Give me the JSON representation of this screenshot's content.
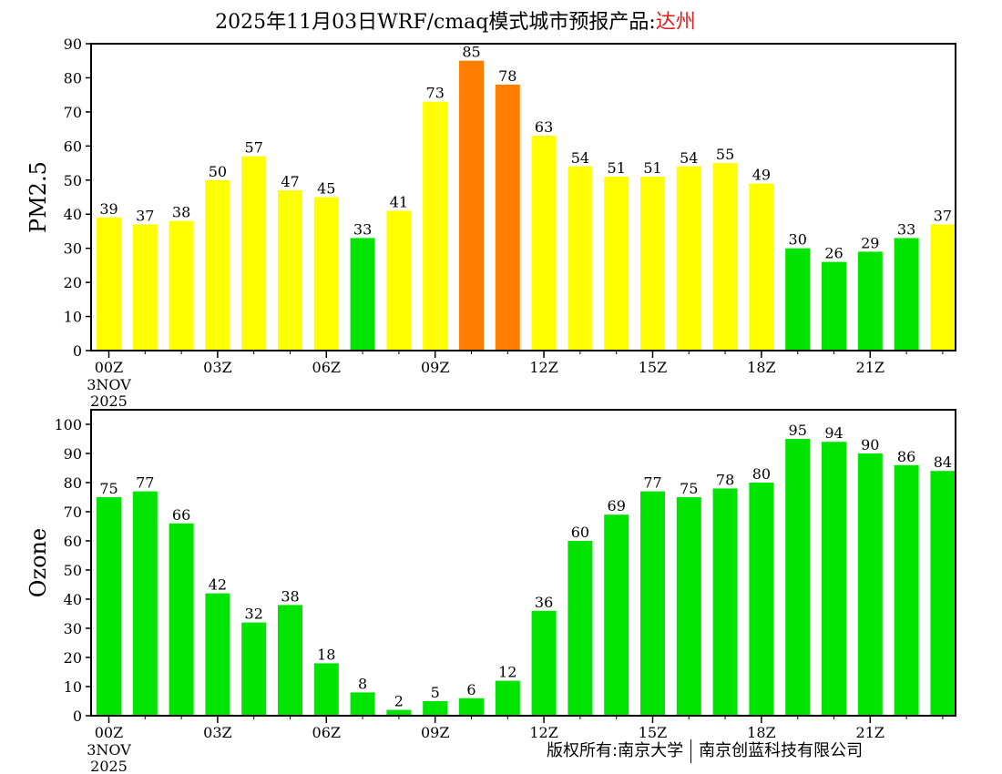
{
  "header": {
    "title_prefix": "2025年11月03日WRF/cmaq模式城市预报产品:",
    "city": "达州"
  },
  "footer": {
    "copyright_left": "版权所有:南京大学",
    "copyright_right": "南京创蓝科技有限公司"
  },
  "colors": {
    "green": "#00e400",
    "yellow": "#ffff00",
    "orange": "#ff7e00"
  },
  "chart_data": [
    {
      "type": "bar",
      "name": "pm25",
      "ylabel": "PM2.5",
      "ylim": [
        0,
        90
      ],
      "yticks": [
        0,
        10,
        20,
        30,
        40,
        50,
        60,
        70,
        80,
        90
      ],
      "values": [
        39,
        37,
        38,
        50,
        57,
        47,
        45,
        33,
        41,
        73,
        85,
        78,
        63,
        54,
        51,
        51,
        54,
        55,
        49,
        30,
        26,
        29,
        33,
        37
      ],
      "bar_colors": [
        "yellow",
        "yellow",
        "yellow",
        "yellow",
        "yellow",
        "yellow",
        "yellow",
        "green",
        "yellow",
        "yellow",
        "orange",
        "orange",
        "yellow",
        "yellow",
        "yellow",
        "yellow",
        "yellow",
        "yellow",
        "yellow",
        "green",
        "green",
        "green",
        "green",
        "yellow"
      ],
      "xtick_labels": [
        {
          "hour": 0,
          "label": "00Z"
        },
        {
          "hour": 3,
          "label": "03Z"
        },
        {
          "hour": 6,
          "label": "06Z"
        },
        {
          "hour": 9,
          "label": "09Z"
        },
        {
          "hour": 12,
          "label": "12Z"
        },
        {
          "hour": 15,
          "label": "15Z"
        },
        {
          "hour": 18,
          "label": "18Z"
        },
        {
          "hour": 21,
          "label": "21Z"
        }
      ],
      "date_label": [
        "3NOV",
        "2025"
      ]
    },
    {
      "type": "bar",
      "name": "ozone",
      "ylabel": "Ozone",
      "ylim": [
        0,
        105
      ],
      "yticks": [
        0,
        10,
        20,
        30,
        40,
        50,
        60,
        70,
        80,
        90,
        100
      ],
      "values": [
        75,
        77,
        66,
        42,
        32,
        38,
        18,
        8,
        2,
        5,
        6,
        12,
        36,
        60,
        69,
        77,
        75,
        78,
        80,
        95,
        94,
        90,
        86,
        84
      ],
      "bar_colors": [
        "green",
        "green",
        "green",
        "green",
        "green",
        "green",
        "green",
        "green",
        "green",
        "green",
        "green",
        "green",
        "green",
        "green",
        "green",
        "green",
        "green",
        "green",
        "green",
        "green",
        "green",
        "green",
        "green",
        "green"
      ],
      "xtick_labels": [
        {
          "hour": 0,
          "label": "00Z"
        },
        {
          "hour": 3,
          "label": "03Z"
        },
        {
          "hour": 6,
          "label": "06Z"
        },
        {
          "hour": 9,
          "label": "09Z"
        },
        {
          "hour": 12,
          "label": "12Z"
        },
        {
          "hour": 15,
          "label": "15Z"
        },
        {
          "hour": 18,
          "label": "18Z"
        },
        {
          "hour": 21,
          "label": "21Z"
        }
      ],
      "date_label": [
        "3NOV",
        "2025"
      ]
    }
  ]
}
